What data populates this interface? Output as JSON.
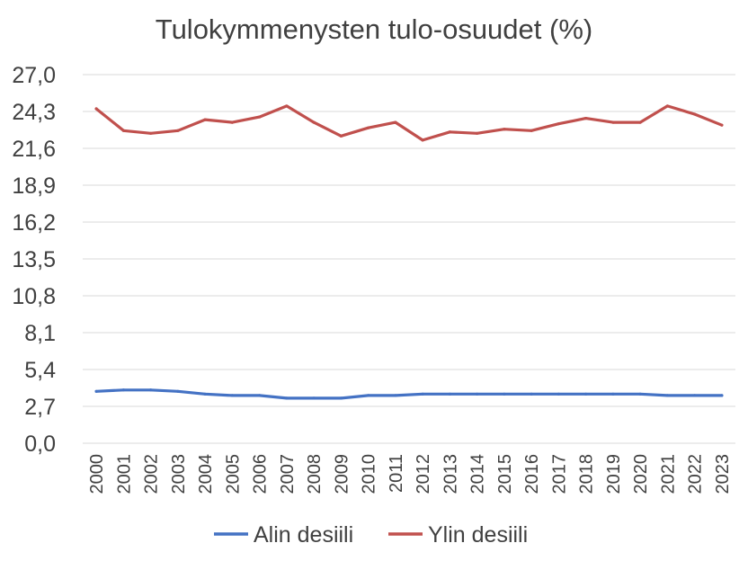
{
  "chart_data": {
    "type": "line",
    "title": "Tulokymmenysten tulo-osuudet (%)",
    "xlabel": "",
    "ylabel": "",
    "ylim": [
      0,
      27
    ],
    "yticks": [
      "0,0",
      "2,7",
      "5,4",
      "8,1",
      "10,8",
      "13,5",
      "16,2",
      "18,9",
      "21,6",
      "24,3",
      "27,0"
    ],
    "grid": true,
    "legend_position": "bottom",
    "categories": [
      "2000",
      "2001",
      "2002",
      "2003",
      "2004",
      "2005",
      "2006",
      "2007",
      "2008",
      "2009",
      "2010",
      "2011",
      "2012",
      "2013",
      "2014",
      "2015",
      "2016",
      "2017",
      "2018",
      "2019",
      "2020",
      "2021",
      "2022",
      "2023"
    ],
    "series": [
      {
        "name": "Alin desiili",
        "color": "#4472c4",
        "values": [
          3.8,
          3.9,
          3.9,
          3.8,
          3.6,
          3.5,
          3.5,
          3.3,
          3.3,
          3.3,
          3.5,
          3.5,
          3.6,
          3.6,
          3.6,
          3.6,
          3.6,
          3.6,
          3.6,
          3.6,
          3.6,
          3.5,
          3.5,
          3.5
        ]
      },
      {
        "name": "Ylin desiili",
        "color": "#c0504d",
        "values": [
          24.5,
          22.9,
          22.7,
          22.9,
          23.7,
          23.5,
          23.9,
          24.7,
          23.5,
          22.5,
          23.1,
          23.5,
          22.2,
          22.8,
          22.7,
          23.0,
          22.9,
          23.4,
          23.8,
          23.5,
          23.5,
          24.7,
          24.1,
          23.3
        ]
      }
    ]
  }
}
